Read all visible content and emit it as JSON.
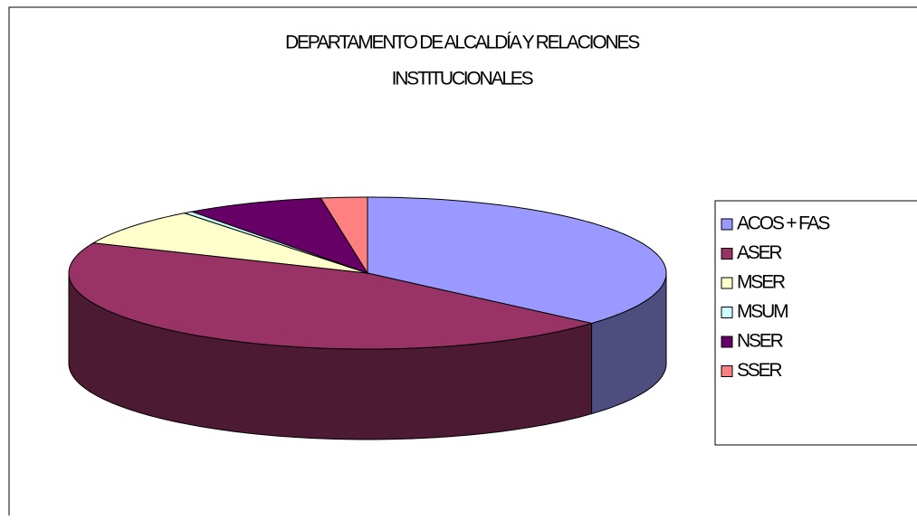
{
  "chart_data": {
    "type": "pie3d",
    "title": [
      "DEPARTAMENTO DE ALCALDÍA Y RELACIONES",
      "INSTITUCIONALES"
    ],
    "categories": [
      "ACOS + FAS",
      "ASER",
      "MSER",
      "MSUM",
      "NSER",
      "SSER"
    ],
    "values": [
      36.5,
      45,
      8,
      0.5,
      7.5,
      2.5
    ],
    "colors": [
      "#9999ff",
      "#993366",
      "#ffffcc",
      "#ccffff",
      "#660066",
      "#ff8080"
    ],
    "legend": "right"
  }
}
